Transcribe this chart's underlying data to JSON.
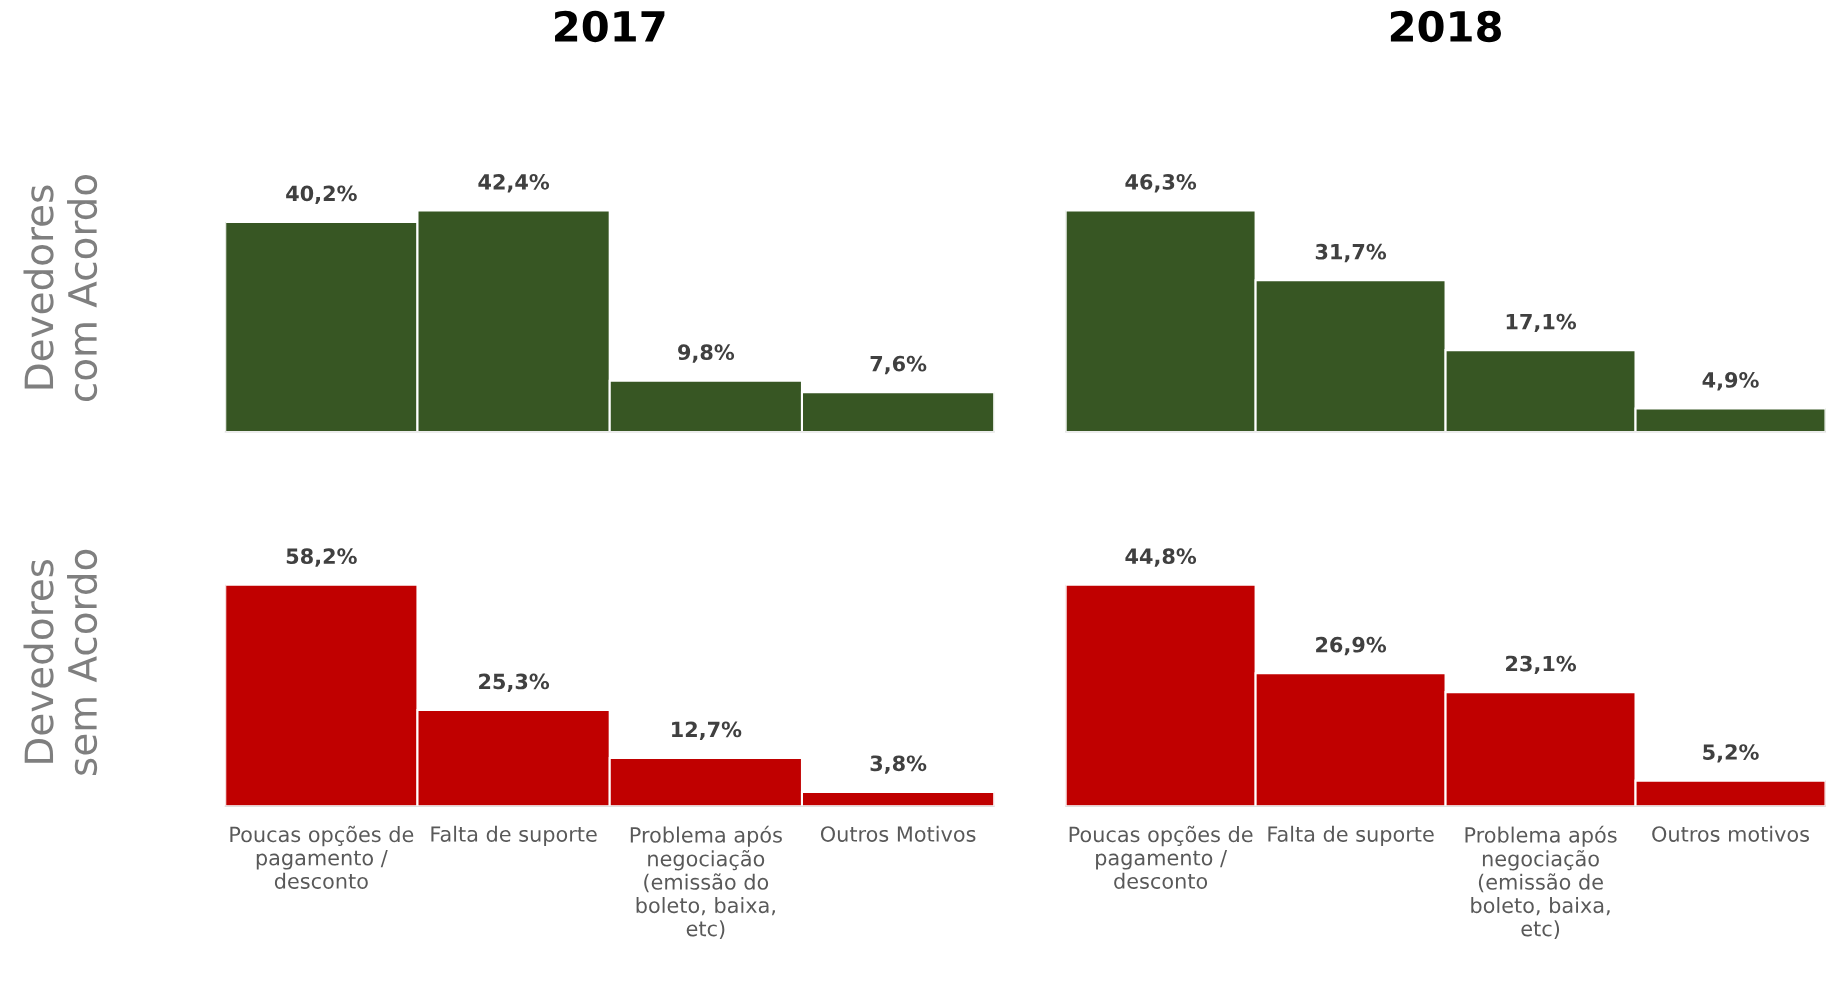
{
  "chart_data": [
    {
      "type": "bar",
      "title": "2017",
      "ylabel": "Devedores\ncom Acordo",
      "categories": [
        null,
        null,
        null,
        null
      ],
      "values": [
        40.2,
        42.4,
        9.8,
        7.6
      ],
      "value_labels": [
        "40,2%",
        "42,4%",
        "9,8%",
        "7,6%"
      ],
      "color": "#375623",
      "tick_labels": false
    },
    {
      "type": "bar",
      "title": "2018",
      "categories": [
        null,
        null,
        null,
        null
      ],
      "values": [
        46.3,
        31.7,
        17.1,
        4.9
      ],
      "value_labels": [
        "46,3%",
        "31,7%",
        "17,1%",
        "4,9%"
      ],
      "color": "#375623",
      "tick_labels": false
    },
    {
      "type": "bar",
      "ylabel": "Devedores\nsem Acordo",
      "categories": [
        "Poucas opções de pagamento / desconto",
        "Falta de suporte",
        "Problema após negociação (emissão do boleto, baixa, etc)",
        "Outros Motivos"
      ],
      "values": [
        58.2,
        25.3,
        12.7,
        3.8
      ],
      "value_labels": [
        "58,2%",
        "25,3%",
        "12,7%",
        "3,8%"
      ],
      "color": "#c00000",
      "tick_labels": "x"
    },
    {
      "type": "bar",
      "categories": [
        "Poucas opções de pagamento / desconto",
        "Falta de suporte",
        "Problema após negociação (emissão de boleto, baixa, etc)",
        "Outros motivos"
      ],
      "values": [
        44.8,
        26.9,
        23.1,
        5.2
      ],
      "value_labels": [
        "44,8%",
        "26,9%",
        "23,1%",
        "5,2%"
      ],
      "color": "#c00000",
      "tick_labels": "x"
    }
  ]
}
